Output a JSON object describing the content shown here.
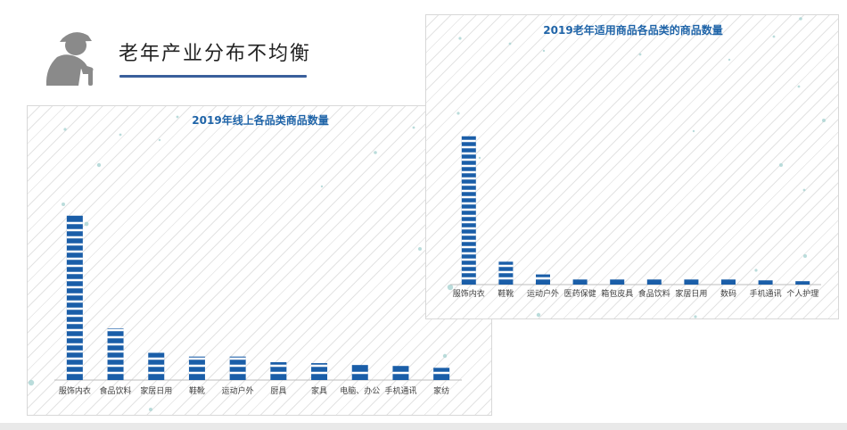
{
  "header": {
    "title": "老年产业分布不均衡",
    "icon": "elderly-person-icon"
  },
  "colors": {
    "bar": "#1a5ea8",
    "bar_stroke": "#ffffff",
    "chart_title": "#1f64a8",
    "dot": "#a9d3d2",
    "axis": "#bdbdbd",
    "label": "#404040",
    "underline": "#3a5f9c",
    "icon": "#8a8a8a"
  },
  "chart_data": [
    {
      "type": "bar",
      "title": "2019年线上各品类商品数量",
      "categories": [
        "服饰内衣",
        "食品饮料",
        "家居日用",
        "鞋靴",
        "运动户外",
        "厨具",
        "家具",
        "电脑、办公",
        "手机通讯",
        "家纺"
      ],
      "values": [
        175,
        55,
        29,
        25,
        25,
        19,
        18,
        16,
        15,
        13
      ],
      "ylim": [
        0,
        190
      ],
      "grid": false,
      "legend": "none"
    },
    {
      "type": "bar",
      "title": "2019老年适用商品各品类的商品数量",
      "categories": [
        "服饰内衣",
        "鞋靴",
        "运动户外",
        "医药保健",
        "箱包皮具",
        "食品饮料",
        "家居日用",
        "数码",
        "手机通讯",
        "个人护理"
      ],
      "values": [
        175,
        27,
        12,
        6,
        6,
        6,
        6,
        6,
        5,
        4
      ],
      "ylim": [
        0,
        200
      ],
      "grid": false,
      "legend": "none"
    }
  ]
}
